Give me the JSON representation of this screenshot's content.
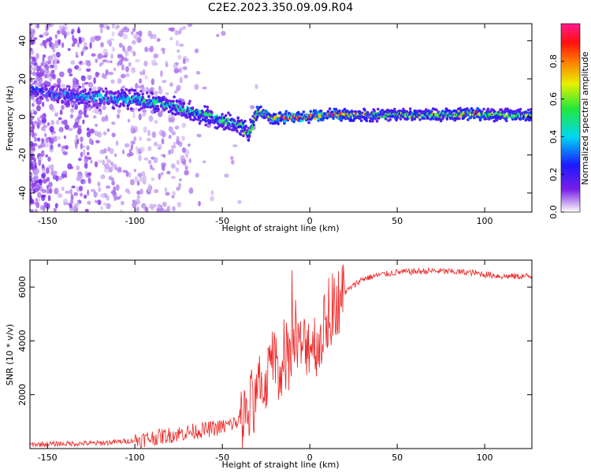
{
  "title": "C2E2.2023.350.09.09.R04",
  "chart_data": [
    {
      "type": "heatmap",
      "xlabel": "Height of straight line (km)",
      "ylabel": "Frequency (Hz)",
      "xlim": [
        -160,
        127
      ],
      "ylim": [
        -50,
        49
      ],
      "xticks": [
        -150,
        -100,
        -50,
        0,
        50,
        100
      ],
      "yticks": [
        -40,
        -20,
        0,
        20,
        40
      ],
      "colorbar": {
        "label": "Normalized spectral amplitude",
        "range": [
          0.0,
          1.0
        ],
        "ticks": [
          0.0,
          0.2,
          0.4,
          0.6,
          0.8
        ],
        "colormap": "rainbow (purple-blue-cyan-green-yellow-red-magenta)"
      },
      "ridge": {
        "x": [
          -160,
          -140,
          -120,
          -100,
          -80,
          -60,
          -50,
          -40,
          -35,
          -30,
          -20,
          -10,
          0,
          10,
          30,
          60,
          80,
          95,
          100,
          127
        ],
        "frequency": [
          14,
          11,
          10,
          9,
          6,
          1,
          -2,
          -4,
          -9,
          3,
          -1,
          0,
          0,
          1,
          1,
          1,
          1,
          2,
          1,
          1
        ],
        "amplitude": [
          0.3,
          0.35,
          0.4,
          0.45,
          0.5,
          0.5,
          0.55,
          0.5,
          0.6,
          0.6,
          0.75,
          0.9,
          0.85,
          0.95,
          0.6,
          0.6,
          0.6,
          0.9,
          0.6,
          0.6
        ]
      }
    },
    {
      "type": "line",
      "xlabel": "Height of straight line (km)",
      "ylabel": "SNR (10 * v/v)",
      "xlim": [
        -160,
        127
      ],
      "ylim": [
        0,
        7000
      ],
      "xticks": [
        -150,
        -100,
        -50,
        0,
        50,
        100
      ],
      "yticks": [
        2000,
        4000,
        6000
      ],
      "series": [
        {
          "color": "#ee2222",
          "x": [
            -160,
            -140,
            -120,
            -100,
            -80,
            -60,
            -50,
            -40,
            -35,
            -30,
            -25,
            -20,
            -15,
            -10,
            -5,
            0,
            5,
            10,
            15,
            20,
            30,
            40,
            50,
            70,
            90,
            110,
            127
          ],
          "y": [
            150,
            180,
            200,
            300,
            500,
            700,
            800,
            1000,
            1400,
            1900,
            2600,
            3300,
            2800,
            3800,
            3700,
            4000,
            3900,
            4800,
            5400,
            5800,
            6300,
            6450,
            6550,
            6600,
            6550,
            6400,
            6400
          ]
        }
      ]
    }
  ]
}
